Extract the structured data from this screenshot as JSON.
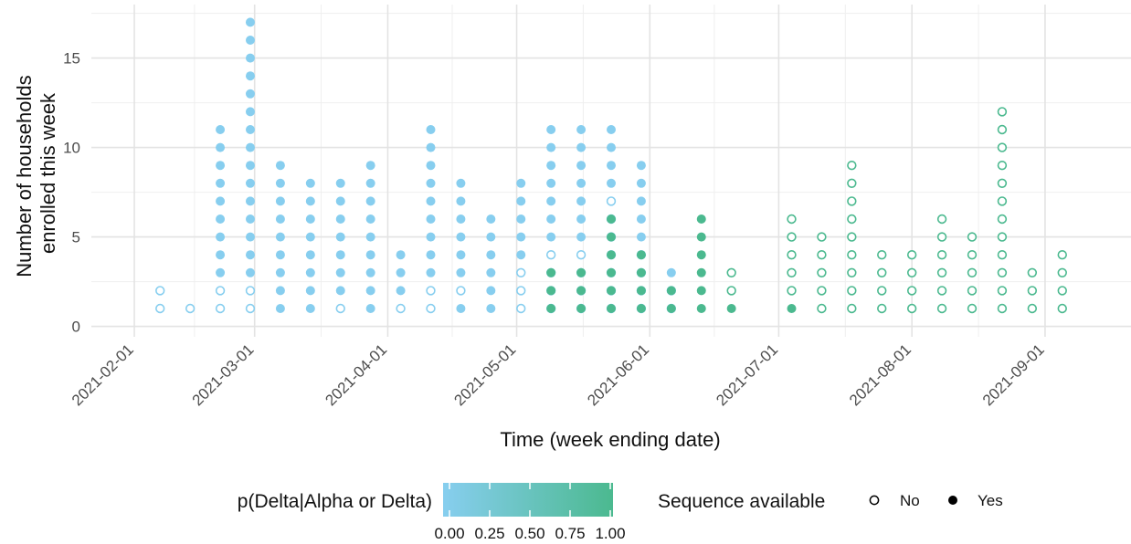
{
  "chart_data": {
    "type": "scatter",
    "subtype": "dot-count",
    "xlabel": "Time (week ending date)",
    "ylabel_lines": [
      "Number of households",
      "enrolled this week"
    ],
    "ylim": [
      0,
      17.5
    ],
    "yticks": [
      "0",
      "5",
      "10",
      "15"
    ],
    "xticks": [
      "2021-02-01",
      "2021-03-01",
      "2021-04-01",
      "2021-05-01",
      "2021-06-01",
      "2021-07-01",
      "2021-08-01",
      "2021-09-01"
    ],
    "xlim": [
      "2021-01-22",
      "2021-09-21"
    ],
    "grid": true,
    "legend_position": "bottom",
    "color_scale": {
      "title": "p(Delta|Alpha or Delta)",
      "low_color": "#87ceef",
      "high_color": "#4bb98f",
      "tick_labels": [
        "0.00",
        "0.25",
        "0.50",
        "0.75",
        "1.00"
      ]
    },
    "shape_legend": {
      "title": "Sequence available",
      "items": [
        "No",
        "Yes"
      ]
    },
    "weeks": [
      {
        "date": "2021-02-07",
        "total": 2,
        "filled": [],
        "p": 0.0
      },
      {
        "date": "2021-02-14",
        "total": 1,
        "filled": [],
        "p": 0.0
      },
      {
        "date": "2021-02-21",
        "total": 11,
        "filled": [
          3,
          4,
          5,
          6,
          7,
          8,
          9,
          10,
          11
        ],
        "p": 0.0
      },
      {
        "date": "2021-02-28",
        "total": 17,
        "filled": [
          3,
          4,
          5,
          6,
          7,
          8,
          9,
          10,
          11,
          12,
          13,
          14,
          15,
          16,
          17
        ],
        "p": 0.0
      },
      {
        "date": "2021-03-07",
        "total": 9,
        "filled": [
          1,
          2,
          3,
          4,
          5,
          6,
          7,
          8,
          9
        ],
        "p": 0.0
      },
      {
        "date": "2021-03-14",
        "total": 8,
        "filled": [
          1,
          2,
          3,
          4,
          5,
          6,
          7,
          8
        ],
        "p": 0.0
      },
      {
        "date": "2021-03-21",
        "total": 8,
        "filled": [
          2,
          3,
          4,
          5,
          6,
          7,
          8
        ],
        "p": 0.0
      },
      {
        "date": "2021-03-28",
        "total": 9,
        "filled": [
          1,
          2,
          3,
          4,
          5,
          6,
          7,
          8,
          9
        ],
        "p": 0.0
      },
      {
        "date": "2021-04-04",
        "total": 4,
        "filled": [
          2,
          3,
          4
        ],
        "p": 0.0
      },
      {
        "date": "2021-04-11",
        "total": 11,
        "filled": [
          3,
          4,
          5,
          6,
          7,
          8,
          9,
          10,
          11
        ],
        "p": 0.0
      },
      {
        "date": "2021-04-18",
        "total": 8,
        "filled": [
          1,
          3,
          4,
          5,
          6,
          7,
          8
        ],
        "p": 0.0
      },
      {
        "date": "2021-04-25",
        "total": 6,
        "filled": [
          1,
          2,
          3,
          4,
          5,
          6
        ],
        "p": 0.0
      },
      {
        "date": "2021-05-02",
        "total": 8,
        "filled": [
          4,
          5,
          6,
          7,
          8
        ],
        "p": 0.0
      },
      {
        "date": "2021-05-09",
        "total": 11,
        "filled": [
          5,
          6,
          7,
          8,
          9,
          10,
          11
        ],
        "p": 0.0
      },
      {
        "date": "2021-05-09",
        "total": 3,
        "filled": [
          1,
          2,
          3
        ],
        "p": 1.0
      },
      {
        "date": "2021-05-16",
        "total": 11,
        "filled": [
          5,
          6,
          7,
          8,
          9,
          10,
          11
        ],
        "p": 0.0
      },
      {
        "date": "2021-05-16",
        "total": 3,
        "filled": [
          1,
          2,
          3
        ],
        "p": 1.0
      },
      {
        "date": "2021-05-23",
        "total": 11,
        "filled": [
          8,
          9,
          10,
          11
        ],
        "p": 0.0
      },
      {
        "date": "2021-05-23",
        "total": 6,
        "filled": [
          1,
          2,
          3,
          4,
          5,
          6
        ],
        "p": 1.0
      },
      {
        "date": "2021-05-30",
        "total": 9,
        "filled": [
          5,
          6,
          7,
          8,
          9
        ],
        "p": 0.0
      },
      {
        "date": "2021-05-30",
        "total": 4,
        "filled": [
          1,
          2,
          3,
          4
        ],
        "p": 1.0
      },
      {
        "date": "2021-06-06",
        "total": 3,
        "filled": [
          3
        ],
        "p": 0.0
      },
      {
        "date": "2021-06-06",
        "total": 2,
        "filled": [
          1,
          2
        ],
        "p": 1.0
      },
      {
        "date": "2021-06-13",
        "total": 6,
        "filled": [
          1,
          2,
          3,
          4,
          5,
          6
        ],
        "p": 1.0
      },
      {
        "date": "2021-06-20",
        "total": 3,
        "filled": [
          1
        ],
        "p": 1.0
      },
      {
        "date": "2021-07-04",
        "total": 6,
        "filled": [
          1
        ],
        "p": 1.0
      },
      {
        "date": "2021-07-11",
        "total": 5,
        "filled": [],
        "p": 1.0
      },
      {
        "date": "2021-07-18",
        "total": 9,
        "filled": [],
        "p": 1.0
      },
      {
        "date": "2021-07-25",
        "total": 4,
        "filled": [],
        "p": 1.0
      },
      {
        "date": "2021-08-01",
        "total": 4,
        "filled": [],
        "p": 1.0
      },
      {
        "date": "2021-08-08",
        "total": 6,
        "filled": [],
        "p": 1.0
      },
      {
        "date": "2021-08-15",
        "total": 5,
        "filled": [],
        "p": 1.0
      },
      {
        "date": "2021-08-22",
        "total": 12,
        "filled": [],
        "p": 1.0
      },
      {
        "date": "2021-08-29",
        "total": 3,
        "filled": [],
        "p": 1.0
      },
      {
        "date": "2021-09-05",
        "total": 4,
        "filled": [],
        "p": 1.0
      }
    ]
  }
}
